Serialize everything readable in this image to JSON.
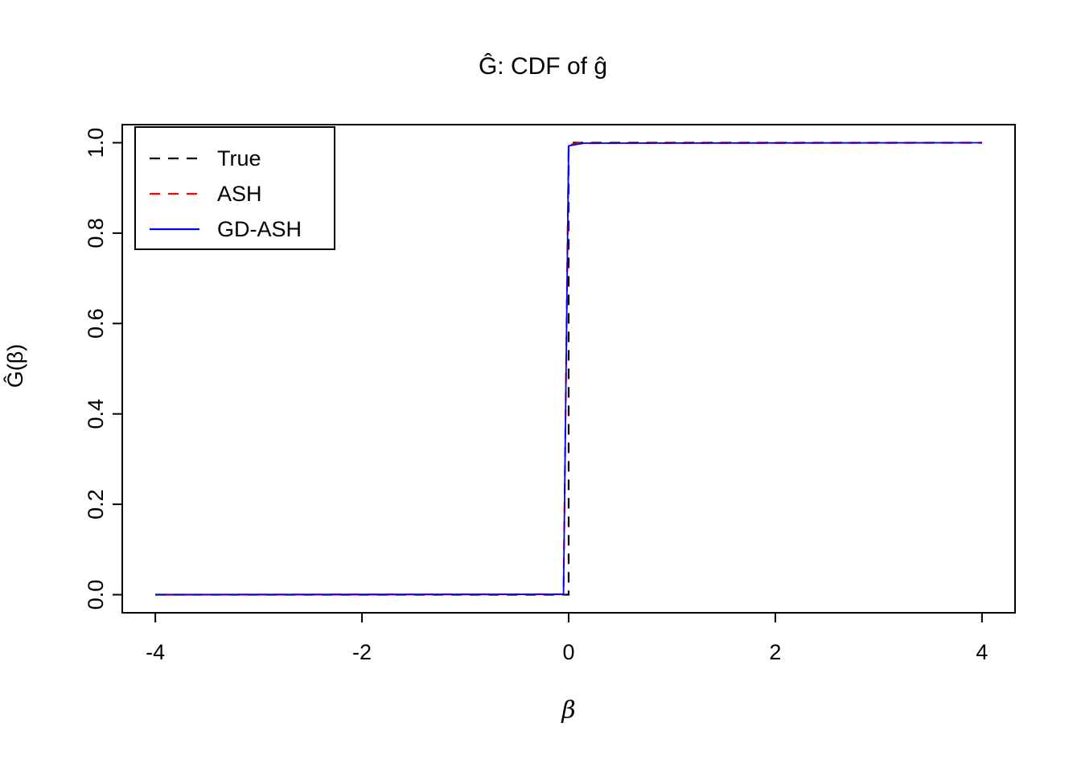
{
  "chart_data": {
    "type": "line",
    "title": "Ĝ: CDF of ĝ",
    "xlabel": "β",
    "ylabel": "Ĝ(β)",
    "xlim": [
      -4,
      4
    ],
    "ylim": [
      0,
      1
    ],
    "xlim_expanded": [
      -4.32,
      4.32
    ],
    "ylim_expanded": [
      -0.04,
      1.04
    ],
    "grid": false,
    "legend_position": "topleft",
    "x_ticks": [
      -4,
      -2,
      0,
      2,
      4
    ],
    "x_tick_labels": [
      "-4",
      "-2",
      "0",
      "2",
      "4"
    ],
    "y_ticks": [
      0,
      0.2,
      0.4,
      0.6,
      0.8,
      1.0
    ],
    "y_tick_labels": [
      "0.0",
      "0.2",
      "0.4",
      "0.6",
      "0.8",
      "1.0"
    ],
    "series": [
      {
        "name": "True",
        "color": "#000000",
        "linetype": "dashed",
        "x": [
          -4,
          0,
          0,
          4
        ],
        "y": [
          0,
          0,
          1,
          1
        ]
      },
      {
        "name": "ASH",
        "color": "#FF0000",
        "linetype": "dashed",
        "x": [
          -4,
          -0.05,
          0,
          0.1,
          4
        ],
        "y": [
          0,
          0.001,
          0.995,
          0.999,
          1
        ]
      },
      {
        "name": "GD-ASH",
        "color": "#0000FF",
        "linetype": "solid",
        "x": [
          -4,
          -0.05,
          0,
          0.15,
          4
        ],
        "y": [
          0,
          0.001,
          0.993,
          0.999,
          1
        ]
      }
    ]
  }
}
